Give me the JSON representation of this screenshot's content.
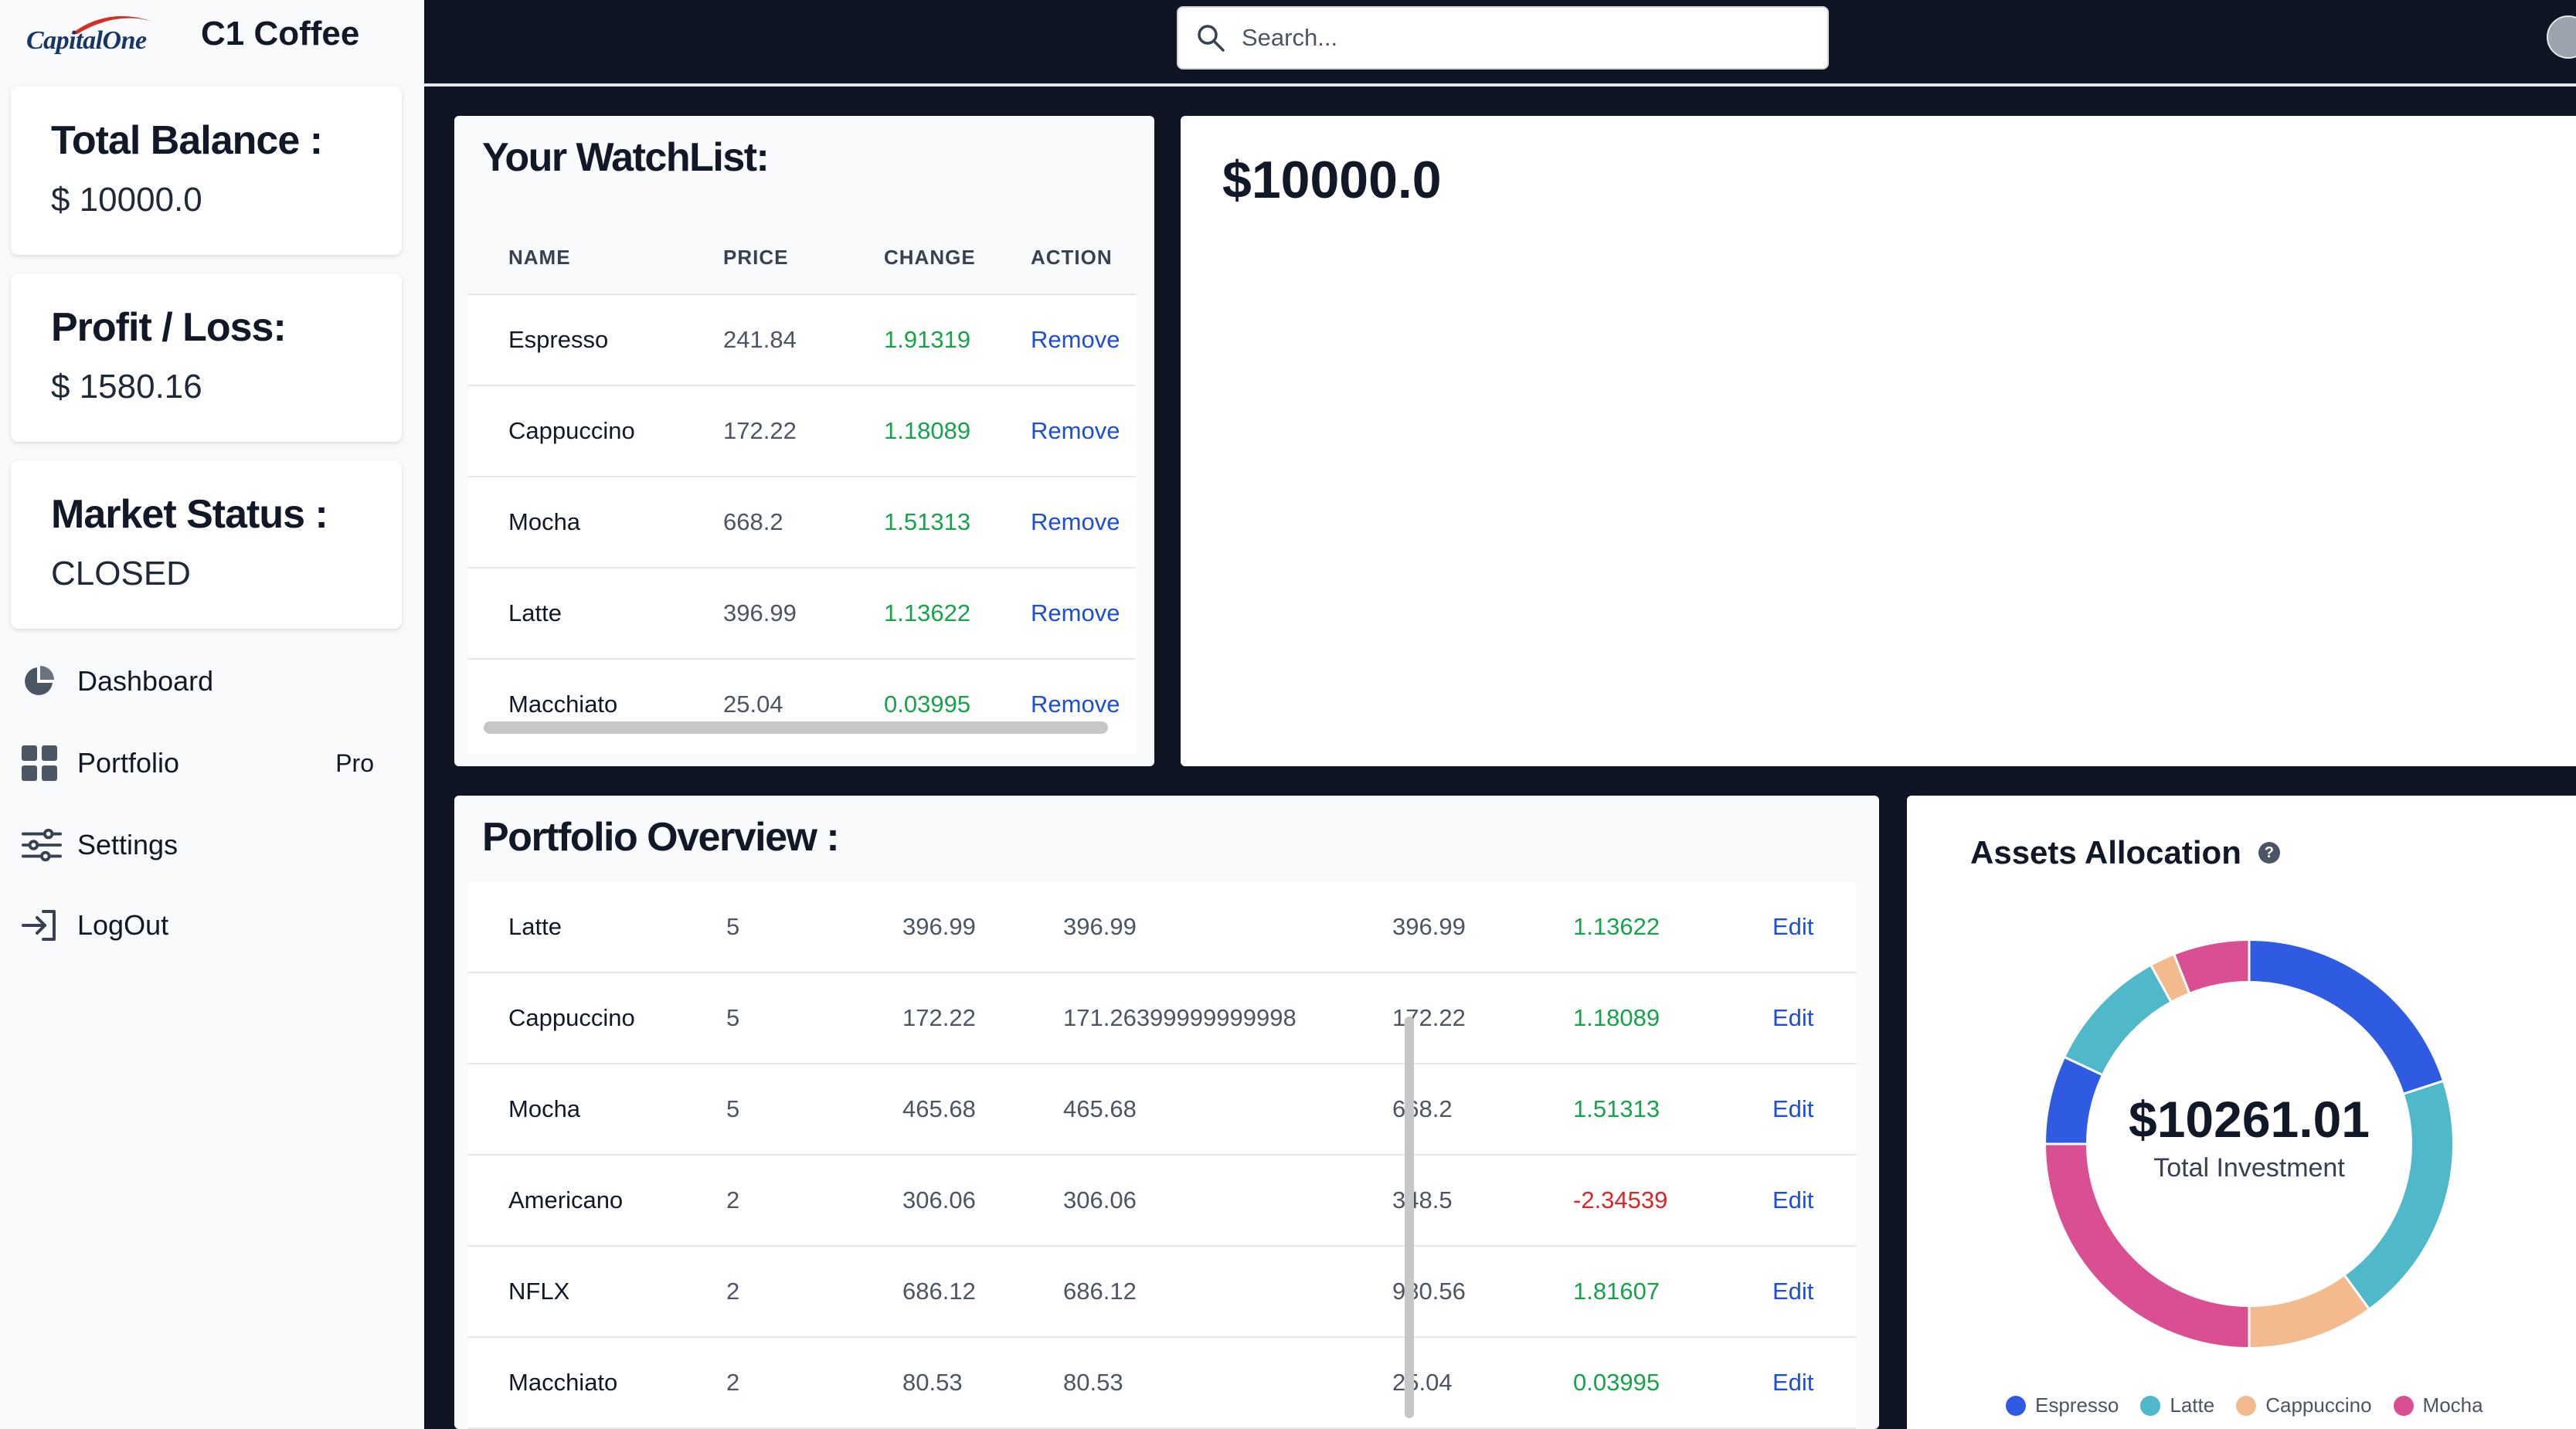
{
  "brand": {
    "logo_text": "CapitalOne",
    "app_name": "C1 Coffee"
  },
  "stats": [
    {
      "label": "Total Balance :",
      "value": "$ 10000.0"
    },
    {
      "label": "Profit / Loss:",
      "value": "$ 1580.16"
    },
    {
      "label": "Market Status :",
      "value": "CLOSED"
    }
  ],
  "nav": {
    "dashboard": "Dashboard",
    "portfolio": "Portfolio",
    "portfolio_badge": "Pro",
    "settings": "Settings",
    "logout": "LogOut"
  },
  "search": {
    "placeholder": "Search..."
  },
  "watchlist": {
    "title": "Your WatchList:",
    "columns": [
      "NAME",
      "PRICE",
      "CHANGE",
      "ACTION"
    ],
    "rows": [
      {
        "name": "Espresso",
        "price": "241.84",
        "change": "1.91319",
        "action": "Remove"
      },
      {
        "name": "Cappuccino",
        "price": "172.22",
        "change": "1.18089",
        "action": "Remove"
      },
      {
        "name": "Mocha",
        "price": "668.2",
        "change": "1.51313",
        "action": "Remove"
      },
      {
        "name": "Latte",
        "price": "396.99",
        "change": "1.13622",
        "action": "Remove"
      },
      {
        "name": "Macchiato",
        "price": "25.04",
        "change": "0.03995",
        "action": "Remove"
      }
    ]
  },
  "balance_panel": {
    "amount": "$10000.0"
  },
  "portfolio": {
    "title": "Portfolio Overview :",
    "rows": [
      {
        "name": "Latte",
        "qty": "5",
        "avg": "396.99",
        "invested": "396.99",
        "price": "396.99",
        "change": "1.13622",
        "action": "Edit"
      },
      {
        "name": "Cappuccino",
        "qty": "5",
        "avg": "172.22",
        "invested": "171.26399999999998",
        "price": "172.22",
        "change": "1.18089",
        "action": "Edit"
      },
      {
        "name": "Mocha",
        "qty": "5",
        "avg": "465.68",
        "invested": "465.68",
        "price": "668.2",
        "change": "1.51313",
        "action": "Edit"
      },
      {
        "name": "Americano",
        "qty": "2",
        "avg": "306.06",
        "invested": "306.06",
        "price": "348.5",
        "change": "-2.34539",
        "action": "Edit"
      },
      {
        "name": "NFLX",
        "qty": "2",
        "avg": "686.12",
        "invested": "686.12",
        "price": "980.56",
        "change": "1.81607",
        "action": "Edit"
      },
      {
        "name": "Macchiato",
        "qty": "2",
        "avg": "80.53",
        "invested": "80.53",
        "price": "25.04",
        "change": "0.03995",
        "action": "Edit"
      }
    ]
  },
  "assets": {
    "title": "Assets Allocation",
    "help": "?",
    "total": "$10261.01",
    "caption": "Total Investment",
    "legend": [
      {
        "name": "Espresso",
        "color": "#2f5be3"
      },
      {
        "name": "Latte",
        "color": "#4fb8c9"
      },
      {
        "name": "Cappuccino",
        "color": "#f3bb8d"
      },
      {
        "name": "Mocha",
        "color": "#d94f92"
      }
    ],
    "segments": [
      {
        "color": "#2f5be3",
        "fraction": 0.2
      },
      {
        "color": "#4fb8c9",
        "fraction": 0.2
      },
      {
        "color": "#f3bb8d",
        "fraction": 0.1
      },
      {
        "color": "#d94f92",
        "fraction": 0.25
      },
      {
        "color": "#2f5be3",
        "fraction": 0.07
      },
      {
        "color": "#4fb8c9",
        "fraction": 0.1
      },
      {
        "color": "#f3bb8d",
        "fraction": 0.02
      },
      {
        "color": "#d94f92",
        "fraction": 0.06
      }
    ]
  }
}
